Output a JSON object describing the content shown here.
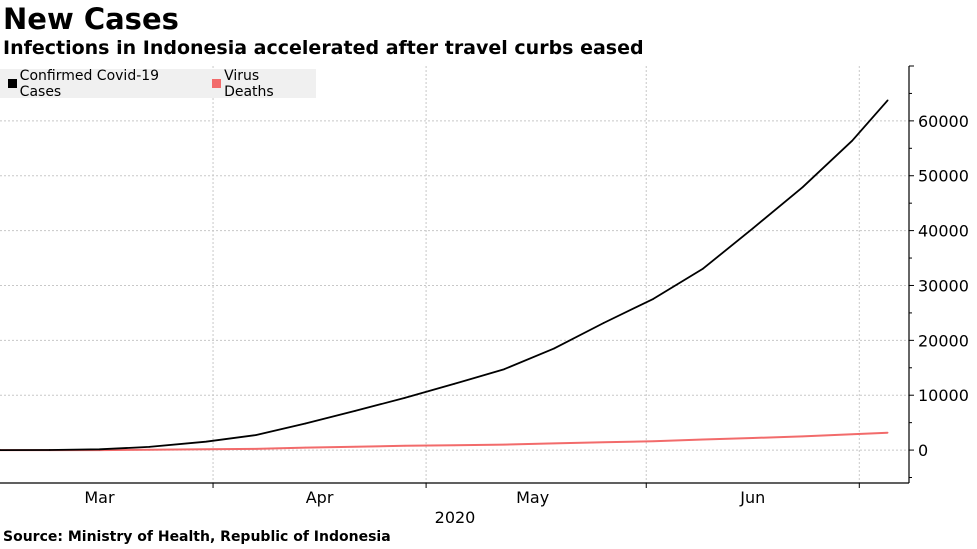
{
  "header": {
    "title": "New Cases",
    "subtitle": "Infections in Indonesia accelerated after travel curbs eased"
  },
  "source": "Source:  Ministry of Health, Republic of Indonesia",
  "chart_data": {
    "type": "line",
    "title": "New Cases",
    "subtitle": "Infections in Indonesia accelerated after travel curbs eased",
    "xlabel": "2020",
    "ylabel": "",
    "xlim": [
      "2020-03-02",
      "2020-07-08"
    ],
    "ylim": [
      -6000,
      70000
    ],
    "yticks": [
      0,
      10000,
      20000,
      30000,
      40000,
      50000,
      60000
    ],
    "ytick_labels": [
      "0",
      "10000",
      "20000",
      "30000",
      "40000",
      "50000",
      "60000"
    ],
    "xticks": [
      {
        "label": "Mar",
        "date": "2020-03-16"
      },
      {
        "label": "Apr",
        "date": "2020-04-16"
      },
      {
        "label": "May",
        "date": "2020-05-16"
      },
      {
        "label": "Jun",
        "date": "2020-06-16"
      }
    ],
    "month_boundaries": [
      "2020-04-01",
      "2020-05-01",
      "2020-06-01",
      "2020-07-01"
    ],
    "grid": true,
    "legend_position": "top-left",
    "x": [
      "2020-03-02",
      "2020-03-09",
      "2020-03-16",
      "2020-03-23",
      "2020-03-31",
      "2020-04-07",
      "2020-04-14",
      "2020-04-21",
      "2020-04-28",
      "2020-05-05",
      "2020-05-12",
      "2020-05-19",
      "2020-05-26",
      "2020-06-02",
      "2020-06-09",
      "2020-06-16",
      "2020-06-23",
      "2020-06-30",
      "2020-07-05"
    ],
    "series": [
      {
        "name": "Confirmed Covid-19 Cases",
        "color": "#000000",
        "values": [
          2,
          19,
          134,
          579,
          1528,
          2738,
          4839,
          7135,
          9511,
          12071,
          14749,
          18496,
          23165,
          27549,
          33076,
          40400,
          47896,
          56385,
          63749
        ]
      },
      {
        "name": "Virus Deaths",
        "color": "#f26b6b",
        "values": [
          0,
          0,
          5,
          48,
          136,
          221,
          459,
          616,
          773,
          872,
          1007,
          1221,
          1418,
          1613,
          1923,
          2198,
          2500,
          2876,
          3171
        ]
      }
    ]
  }
}
